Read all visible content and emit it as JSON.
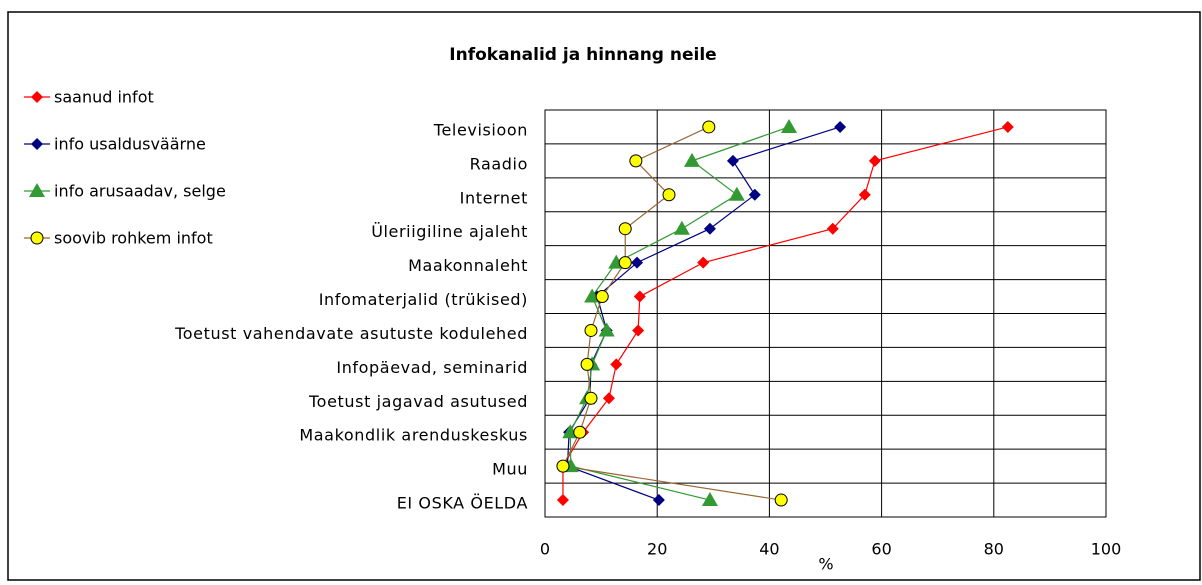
{
  "chart_data": {
    "type": "line",
    "orientation": "horizontal",
    "title": "Infokanalid ja hinnang neile",
    "xlabel": "%",
    "categories": [
      "Televisioon",
      "Raadio",
      "Internet",
      "Üleriigiline ajaleht",
      "Maakonnaleht",
      "Infomaterjalid (trükised)",
      "Toetust vahendavate asutuste kodulehed",
      "Infopäevad, seminarid",
      "Toetust jagavad asutused",
      "Maakondlik arenduskeskus",
      "Muu",
      "EI OSKA ÖELDA"
    ],
    "series": [
      {
        "name": "saanud infot",
        "color": "#ff0000",
        "marker": "diamond",
        "values": [
          82.5,
          58.8,
          57,
          51.3,
          28.2,
          16.9,
          16.6,
          12.7,
          11.4,
          6.8,
          3.2,
          3.2
        ]
      },
      {
        "name": "info usaldusväärne",
        "color": "#000080",
        "marker": "diamond",
        "values": [
          52.6,
          33.5,
          37.4,
          29.4,
          16.4,
          9.3,
          11,
          8.2,
          8,
          4.3,
          4,
          20.3
        ]
      },
      {
        "name": "info arusaadav, selge",
        "color": "#339933",
        "marker": "triangle",
        "values": [
          43.5,
          26.2,
          34.2,
          24.4,
          12.7,
          8.4,
          11,
          8.4,
          7.5,
          4.5,
          4.6,
          29.4
        ]
      },
      {
        "name": "soovib rohkem infot",
        "color": "#996633",
        "marker": "circle",
        "values": [
          29.2,
          16.2,
          22.1,
          14.3,
          14.3,
          10.2,
          8.2,
          7.5,
          8.2,
          6.2,
          3.2,
          42.1
        ]
      }
    ],
    "xlim": [
      0,
      100
    ],
    "xticks": [
      0,
      20,
      40,
      60,
      80,
      100
    ],
    "grid": true,
    "legend": "left"
  }
}
